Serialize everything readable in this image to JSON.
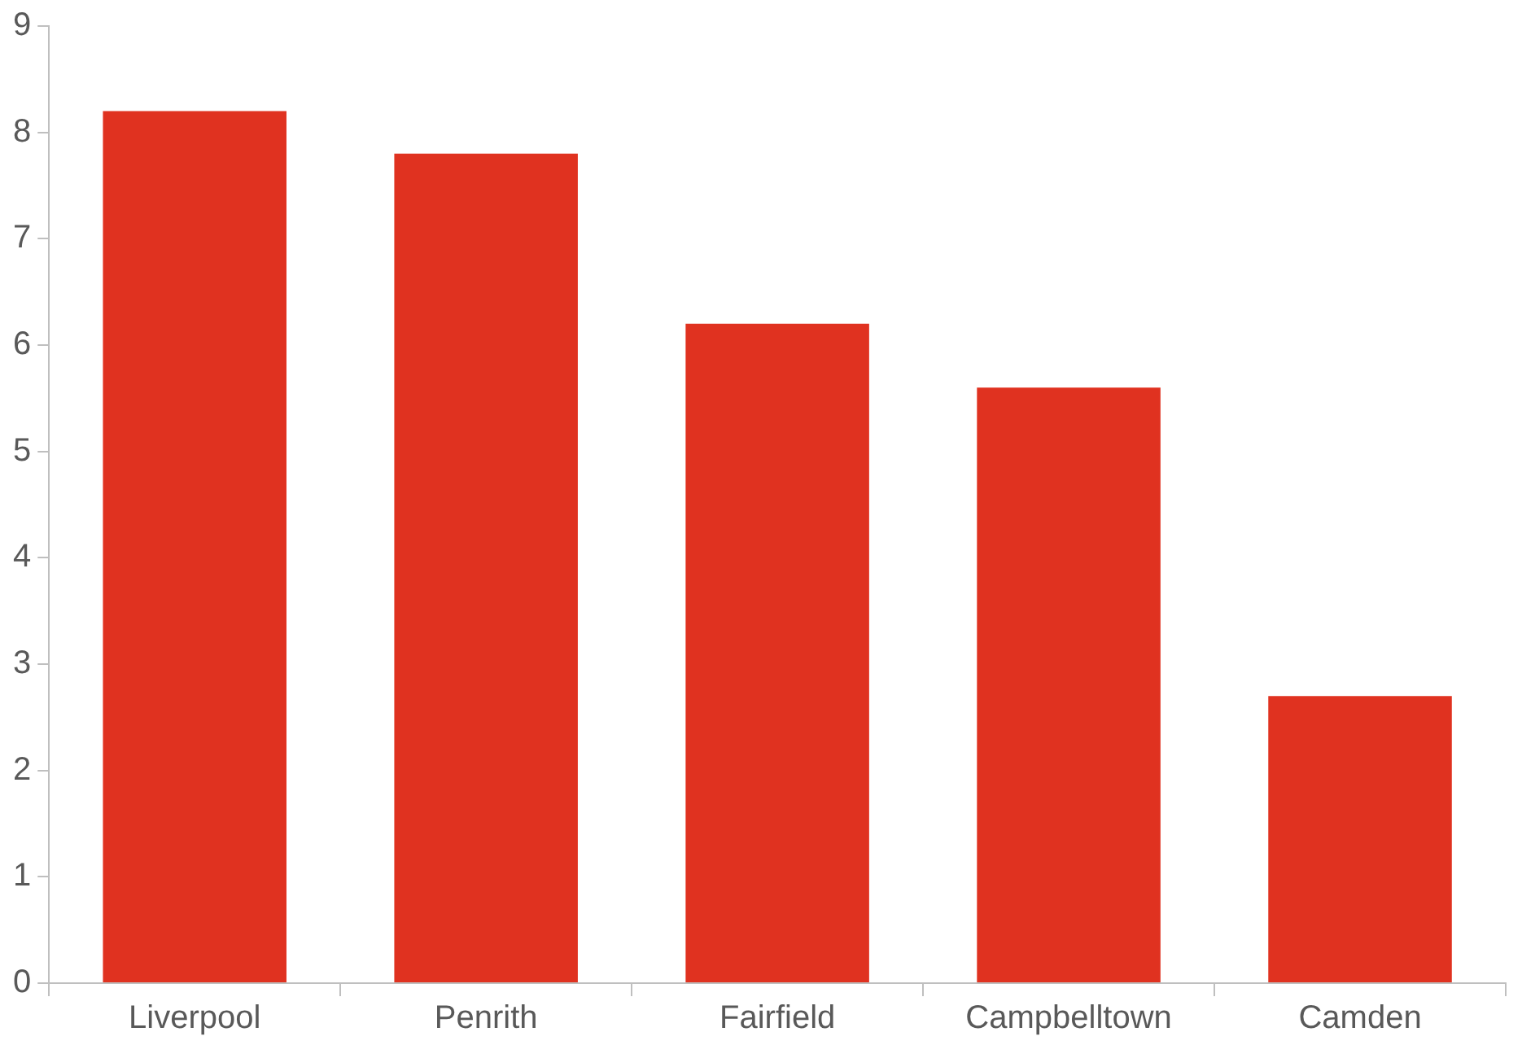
{
  "chart_data": {
    "type": "bar",
    "categories": [
      "Liverpool",
      "Penrith",
      "Fairfield",
      "Campbelltown",
      "Camden"
    ],
    "values": [
      8.2,
      7.8,
      6.2,
      5.6,
      2.7
    ],
    "color": "#e03220",
    "ylim": [
      0,
      9
    ],
    "yticks": [
      0,
      1,
      2,
      3,
      4,
      5,
      6,
      7,
      8,
      9
    ]
  }
}
